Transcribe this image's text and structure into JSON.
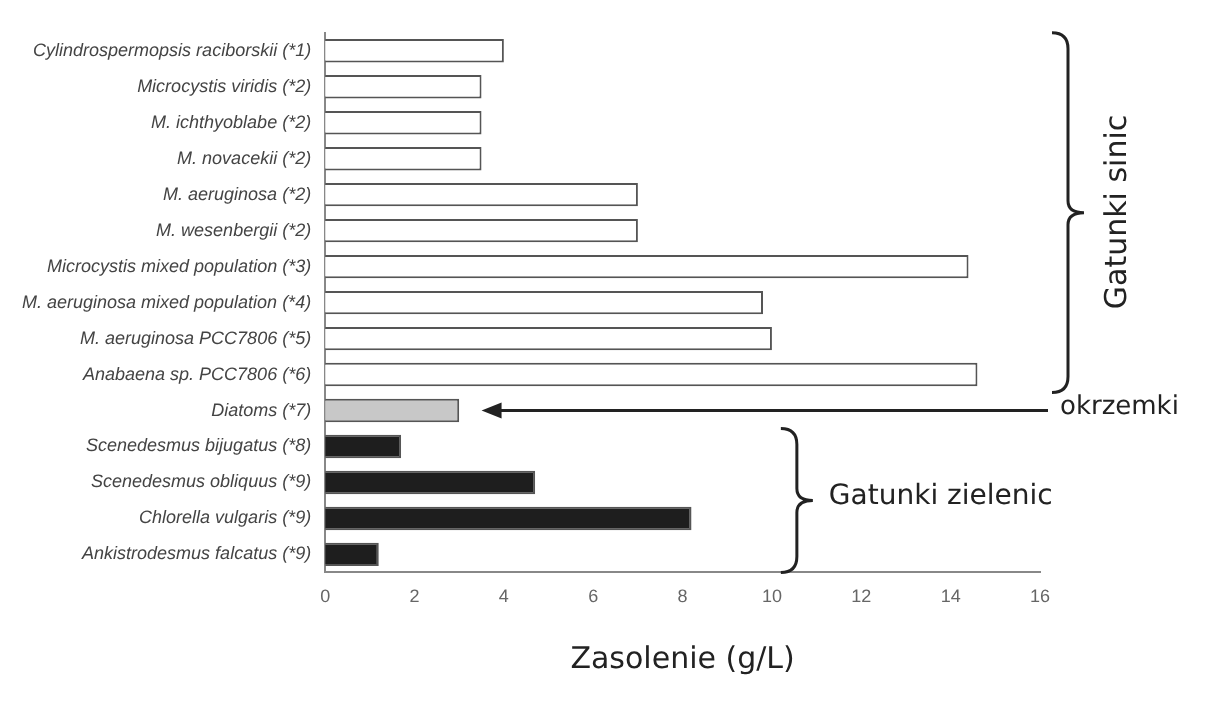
{
  "chart_data": {
    "type": "bar",
    "orientation": "horizontal",
    "xlabel": "Zasolenie (g/L)",
    "categories": [
      "Cylindrospermopsis raciborskii (*1)",
      "Microcystis viridis (*2)",
      "M. ichthyoblabe (*2)",
      "M. novacekii (*2)",
      "M. aeruginosa (*2)",
      "M. wesenbergii (*2)",
      "Microcystis mixed population (*3)",
      "M. aeruginosa mixed population (*4)",
      "M. aeruginosa PCC7806 (*5)",
      "Anabaena sp. PCC7806 (*6)",
      "Diatoms (*7)",
      "Scenedesmus bijugatus (*8)",
      "Scenedesmus obliquus (*9)",
      "Chlorella vulgaris (*9)",
      "Ankistrodesmus falcatus (*9)"
    ],
    "values": [
      4,
      3.5,
      3.5,
      3.5,
      7,
      7,
      14.4,
      9.8,
      10,
      14.6,
      3,
      1.7,
      4.7,
      8.2,
      1.2
    ],
    "colors": [
      "#ffffff",
      "#ffffff",
      "#ffffff",
      "#ffffff",
      "#ffffff",
      "#ffffff",
      "#ffffff",
      "#ffffff",
      "#ffffff",
      "#ffffff",
      "#c8c8c8",
      "#1e1e1e",
      "#1e1e1e",
      "#1e1e1e",
      "#1e1e1e"
    ],
    "xlim": [
      0,
      16
    ],
    "xticks": [
      0,
      2,
      4,
      6,
      8,
      10,
      12,
      14,
      16
    ],
    "grid": false,
    "legend": false,
    "annotations": [
      "Gatunki sinic",
      "okrzemki",
      "Gatunki zielenic"
    ]
  }
}
